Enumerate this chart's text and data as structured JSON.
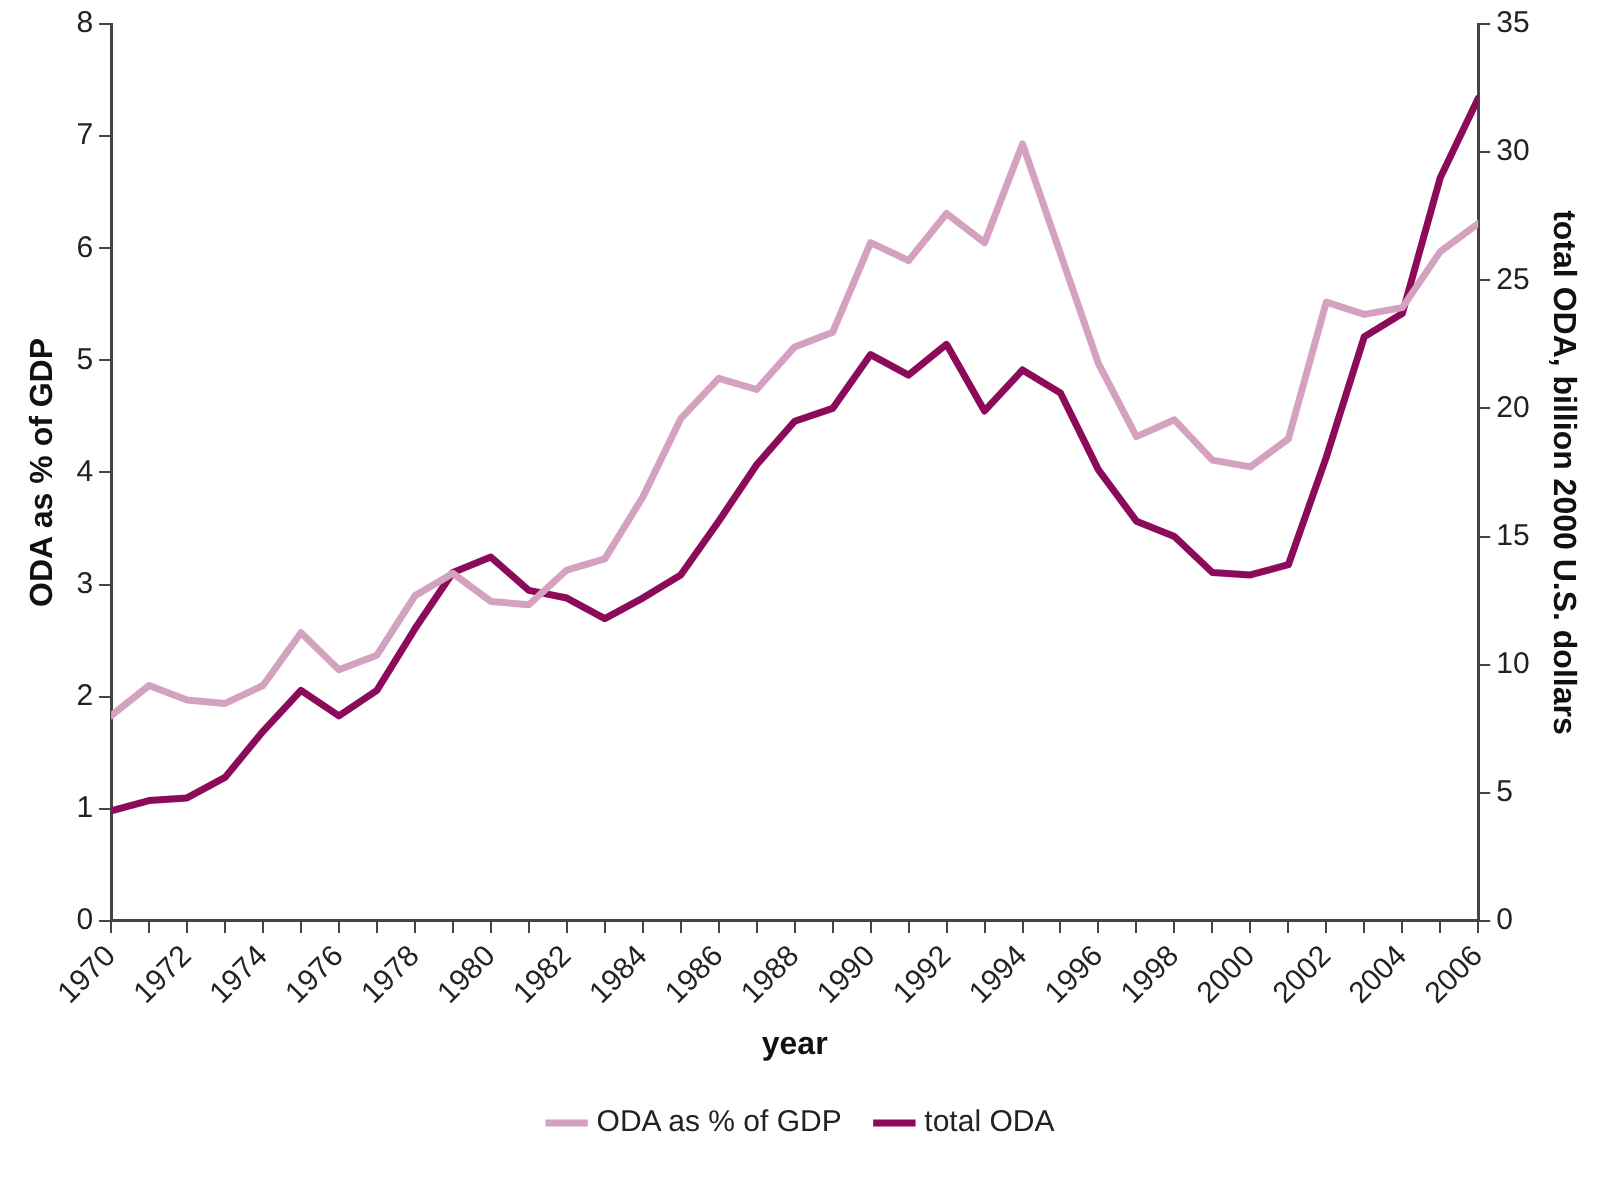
{
  "chart_data": {
    "type": "line",
    "xlabel": "year",
    "ylabel": "ODA as % of GDP",
    "y2label": "total ODA, billion 2000 U.S. dollars",
    "x": [
      1970,
      1971,
      1972,
      1973,
      1974,
      1975,
      1976,
      1977,
      1978,
      1979,
      1980,
      1981,
      1982,
      1983,
      1984,
      1985,
      1986,
      1987,
      1988,
      1989,
      1990,
      1991,
      1992,
      1993,
      1994,
      1995,
      1996,
      1997,
      1998,
      1999,
      2000,
      2001,
      2002,
      2003,
      2004,
      2005,
      2006
    ],
    "series": [
      {
        "name": "ODA as % of GDP",
        "color": "#d4a2c0",
        "values": [
          1.83,
          2.1,
          1.97,
          1.94,
          2.1,
          2.57,
          2.24,
          2.37,
          2.9,
          3.1,
          2.85,
          2.82,
          3.13,
          3.23,
          3.78,
          4.48,
          4.84,
          4.74,
          5.12,
          5.25,
          6.05,
          5.89,
          6.31,
          6.05,
          6.93,
          5.95,
          4.97,
          4.32,
          4.47,
          4.11,
          4.05,
          4.3,
          5.52,
          5.41,
          5.47,
          5.97,
          6.22
        ]
      },
      {
        "name": "total ODA",
        "color": "#8b0b5a",
        "axis": "y2",
        "values": [
          4.3,
          4.7,
          4.8,
          5.6,
          7.4,
          9.0,
          8.0,
          9.0,
          11.4,
          13.6,
          14.2,
          12.9,
          12.6,
          11.8,
          12.6,
          13.5,
          15.6,
          17.8,
          19.5,
          20.0,
          22.1,
          21.3,
          22.5,
          19.9,
          21.5,
          20.6,
          17.6,
          15.6,
          15.0,
          13.6,
          13.5,
          13.9,
          18.1,
          22.8,
          23.7,
          29.0,
          32.1
        ]
      }
    ],
    "xlim": [
      1970,
      2006
    ],
    "xticks": [
      1970,
      {
        "value": 1971,
        "label": null
      },
      1972,
      {
        "value": 1973,
        "label": null
      },
      1974,
      {
        "value": 1975,
        "label": null
      },
      1976,
      {
        "value": 1977,
        "label": null
      },
      1978,
      {
        "value": 1979,
        "label": null
      },
      1980,
      {
        "value": 1981,
        "label": null
      },
      1982,
      {
        "value": 1983,
        "label": null
      },
      1984,
      {
        "value": 1985,
        "label": null
      },
      1986,
      {
        "value": 1987,
        "label": null
      },
      1988,
      {
        "value": 1989,
        "label": null
      },
      1990,
      {
        "value": 1991,
        "label": null
      },
      1992,
      {
        "value": 1993,
        "label": null
      },
      1994,
      {
        "value": 1995,
        "label": null
      },
      1996,
      {
        "value": 1997,
        "label": null
      },
      1998,
      {
        "value": 1999,
        "label": null
      },
      2000,
      {
        "value": 2001,
        "label": null
      },
      2002,
      {
        "value": 2003,
        "label": null
      },
      2004,
      {
        "value": 2005,
        "label": null
      },
      2006
    ],
    "ylim": [
      0,
      8
    ],
    "yticks": [
      0,
      1,
      2,
      3,
      4,
      5,
      6,
      7,
      8
    ],
    "y2lim": [
      0,
      35
    ],
    "y2ticks": [
      0,
      5,
      10,
      15,
      20,
      25,
      30,
      35
    ],
    "grid": false,
    "legend": "bottom",
    "marker": "none",
    "line_style": "solid"
  }
}
